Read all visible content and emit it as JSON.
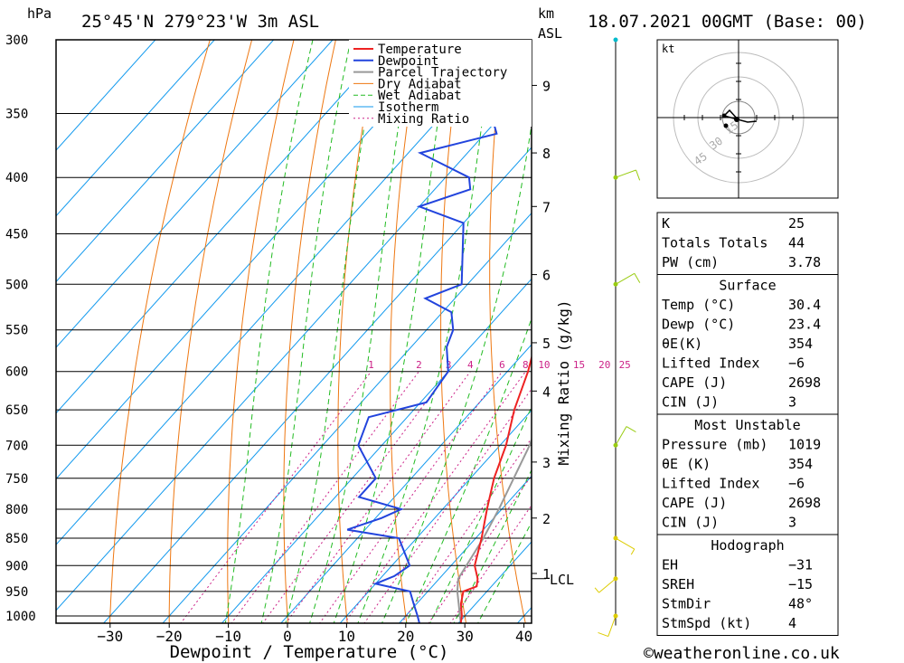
{
  "header": {
    "pressure_unit": "hPa",
    "location": "25°45'N  279°23'W  3m  ASL",
    "height_unit_km": "km",
    "height_unit_asl": "ASL",
    "datetime": "18.07.2021  00GMT  (Base: 00)"
  },
  "chart_data": {
    "type": "skew-t log-p",
    "xlabel": "Dewpoint / Temperature (°C)",
    "ylabel_right": "Mixing Ratio (g/kg)",
    "pressure_levels": [
      300,
      350,
      400,
      450,
      500,
      550,
      600,
      650,
      700,
      750,
      800,
      850,
      900,
      950,
      1000
    ],
    "pressure_labels": [
      "300",
      "350",
      "400",
      "450",
      "500",
      "550",
      "600",
      "650",
      "700",
      "750",
      "800",
      "850",
      "900",
      "950",
      "1000"
    ],
    "temperature_ticks": [
      -30,
      -20,
      -10,
      0,
      10,
      20,
      30,
      40
    ],
    "temperature_labels": [
      "−30",
      "−20",
      "−10",
      "0",
      "10",
      "20",
      "30",
      "40"
    ],
    "xlim": [
      -40,
      40
    ],
    "ylim_hpa": [
      1020,
      300
    ],
    "km_ticks": [
      {
        "label": "9",
        "p": 330
      },
      {
        "label": "8",
        "p": 380
      },
      {
        "label": "7",
        "p": 425
      },
      {
        "label": "6",
        "p": 490
      },
      {
        "label": "5",
        "p": 565
      },
      {
        "label": "4",
        "p": 625
      },
      {
        "label": "3",
        "p": 725
      },
      {
        "label": "2",
        "p": 815
      },
      {
        "label": "1",
        "p": 915
      }
    ],
    "lcl_label": "LCL",
    "lcl_p": 925,
    "mixing_ratio_labels": [
      "1",
      "2",
      "3",
      "4",
      "6",
      "8",
      "10",
      "15",
      "20",
      "25"
    ],
    "mixing_ratio_values": [
      1,
      2,
      3,
      4,
      6,
      8,
      10,
      15,
      20,
      25
    ],
    "legend": [
      "Temperature",
      "Dewpoint",
      "Parcel Trajectory",
      "Dry Adiabat",
      "Wet Adiabat",
      "Isotherm",
      "Mixing Ratio"
    ],
    "legend_colors": [
      "#ee2222",
      "#2244dd",
      "#999999",
      "#ee7711",
      "#22bb22",
      "#1199ee",
      "#cc2288"
    ],
    "temperature": [
      {
        "p": 1015,
        "t": 30.4
      },
      {
        "p": 1000,
        "t": 29.5
      },
      {
        "p": 975,
        "t": 27.5
      },
      {
        "p": 950,
        "t": 26.0
      },
      {
        "p": 940,
        "t": 27.5
      },
      {
        "p": 925,
        "t": 26.5
      },
      {
        "p": 900,
        "t": 24.0
      },
      {
        "p": 850,
        "t": 21.0
      },
      {
        "p": 800,
        "t": 17.5
      },
      {
        "p": 750,
        "t": 14.0
      },
      {
        "p": 700,
        "t": 11.0
      },
      {
        "p": 650,
        "t": 7.0
      },
      {
        "p": 600,
        "t": 3.5
      },
      {
        "p": 550,
        "t": -1.0
      },
      {
        "p": 520,
        "t": -4.0
      },
      {
        "p": 500,
        "t": -6.0
      },
      {
        "p": 450,
        "t": -11.5
      },
      {
        "p": 430,
        "t": -12.5
      },
      {
        "p": 400,
        "t": -17.0
      },
      {
        "p": 370,
        "t": -22.0
      },
      {
        "p": 350,
        "t": -26.0
      },
      {
        "p": 320,
        "t": -30.5
      },
      {
        "p": 300,
        "t": -34.5
      }
    ],
    "dewpoint": [
      {
        "p": 1015,
        "t": 23.4
      },
      {
        "p": 1000,
        "t": 22.0
      },
      {
        "p": 975,
        "t": 19.5
      },
      {
        "p": 950,
        "t": 17.0
      },
      {
        "p": 935,
        "t": 10.0
      },
      {
        "p": 920,
        "t": 12.0
      },
      {
        "p": 900,
        "t": 13.0
      },
      {
        "p": 850,
        "t": 7.0
      },
      {
        "p": 835,
        "t": -3.0
      },
      {
        "p": 815,
        "t": 1.0
      },
      {
        "p": 800,
        "t": 3.0
      },
      {
        "p": 780,
        "t": -6.0
      },
      {
        "p": 750,
        "t": -6.0
      },
      {
        "p": 700,
        "t": -14.0
      },
      {
        "p": 660,
        "t": -16.5
      },
      {
        "p": 640,
        "t": -9.0
      },
      {
        "p": 600,
        "t": -10.0
      },
      {
        "p": 570,
        "t": -14.0
      },
      {
        "p": 550,
        "t": -15.5
      },
      {
        "p": 530,
        "t": -18.5
      },
      {
        "p": 515,
        "t": -25.0
      },
      {
        "p": 500,
        "t": -21.0
      },
      {
        "p": 440,
        "t": -30.0
      },
      {
        "p": 425,
        "t": -40.0
      },
      {
        "p": 410,
        "t": -34.0
      },
      {
        "p": 400,
        "t": -36.0
      },
      {
        "p": 380,
        "t": -48.0
      },
      {
        "p": 365,
        "t": -38.0
      },
      {
        "p": 350,
        "t": -42.0
      },
      {
        "p": 335,
        "t": -52.0
      },
      {
        "p": 325,
        "t": -47.0
      },
      {
        "p": 320,
        "t": -56.0
      },
      {
        "p": 310,
        "t": -47.0
      },
      {
        "p": 300,
        "t": -50.0
      }
    ],
    "parcel": [
      {
        "p": 1015,
        "t": 30.4
      },
      {
        "p": 950,
        "t": 25.0
      },
      {
        "p": 925,
        "t": 23.2
      },
      {
        "p": 850,
        "t": 21.3
      },
      {
        "p": 800,
        "t": 19.5
      },
      {
        "p": 700,
        "t": 15.0
      },
      {
        "p": 600,
        "t": 8.5
      },
      {
        "p": 500,
        "t": 0.0
      },
      {
        "p": 450,
        "t": -5.5
      },
      {
        "p": 400,
        "t": -12.5
      },
      {
        "p": 370,
        "t": -17.5
      }
    ],
    "wind_profile": [
      {
        "p": 1000,
        "dir": 200,
        "spd": 10
      },
      {
        "p": 925,
        "dir": 230,
        "spd": 5
      },
      {
        "p": 850,
        "dir": 120,
        "spd": 5
      },
      {
        "p": 700,
        "dir": 30,
        "spd": 10
      },
      {
        "p": 500,
        "dir": 60,
        "spd": 10
      },
      {
        "p": 400,
        "dir": 70,
        "spd": 10
      },
      {
        "p": 300,
        "dir": 80,
        "spd": 0
      }
    ]
  },
  "hodograph": {
    "unit": "kt",
    "ring_labels": [
      "15",
      "30",
      "45"
    ]
  },
  "indices": {
    "basic": [
      {
        "label": "K",
        "value": "25"
      },
      {
        "label": "Totals Totals",
        "value": "44"
      },
      {
        "label": "PW (cm)",
        "value": "3.78"
      }
    ],
    "surface_title": "Surface",
    "surface": [
      {
        "label": "Temp (°C)",
        "value": "30.4"
      },
      {
        "label": "Dewp (°C)",
        "value": "23.4"
      },
      {
        "label": "θE(K)",
        "value": "354"
      },
      {
        "label": "Lifted Index",
        "value": "−6"
      },
      {
        "label": "CAPE (J)",
        "value": "2698"
      },
      {
        "label": "CIN (J)",
        "value": "3"
      }
    ],
    "unstable_title": "Most Unstable",
    "unstable": [
      {
        "label": "Pressure (mb)",
        "value": "1019"
      },
      {
        "label": "θE (K)",
        "value": "354"
      },
      {
        "label": "Lifted Index",
        "value": "−6"
      },
      {
        "label": "CAPE (J)",
        "value": "2698"
      },
      {
        "label": "CIN (J)",
        "value": "3"
      }
    ],
    "hodo_title": "Hodograph",
    "hodo": [
      {
        "label": "EH",
        "value": "−31"
      },
      {
        "label": "SREH",
        "value": "−15"
      },
      {
        "label": "StmDir",
        "value": "48°"
      },
      {
        "label": "StmSpd (kt)",
        "value": "4"
      }
    ]
  },
  "footer": {
    "credit": "©weatheronline.co.uk"
  }
}
